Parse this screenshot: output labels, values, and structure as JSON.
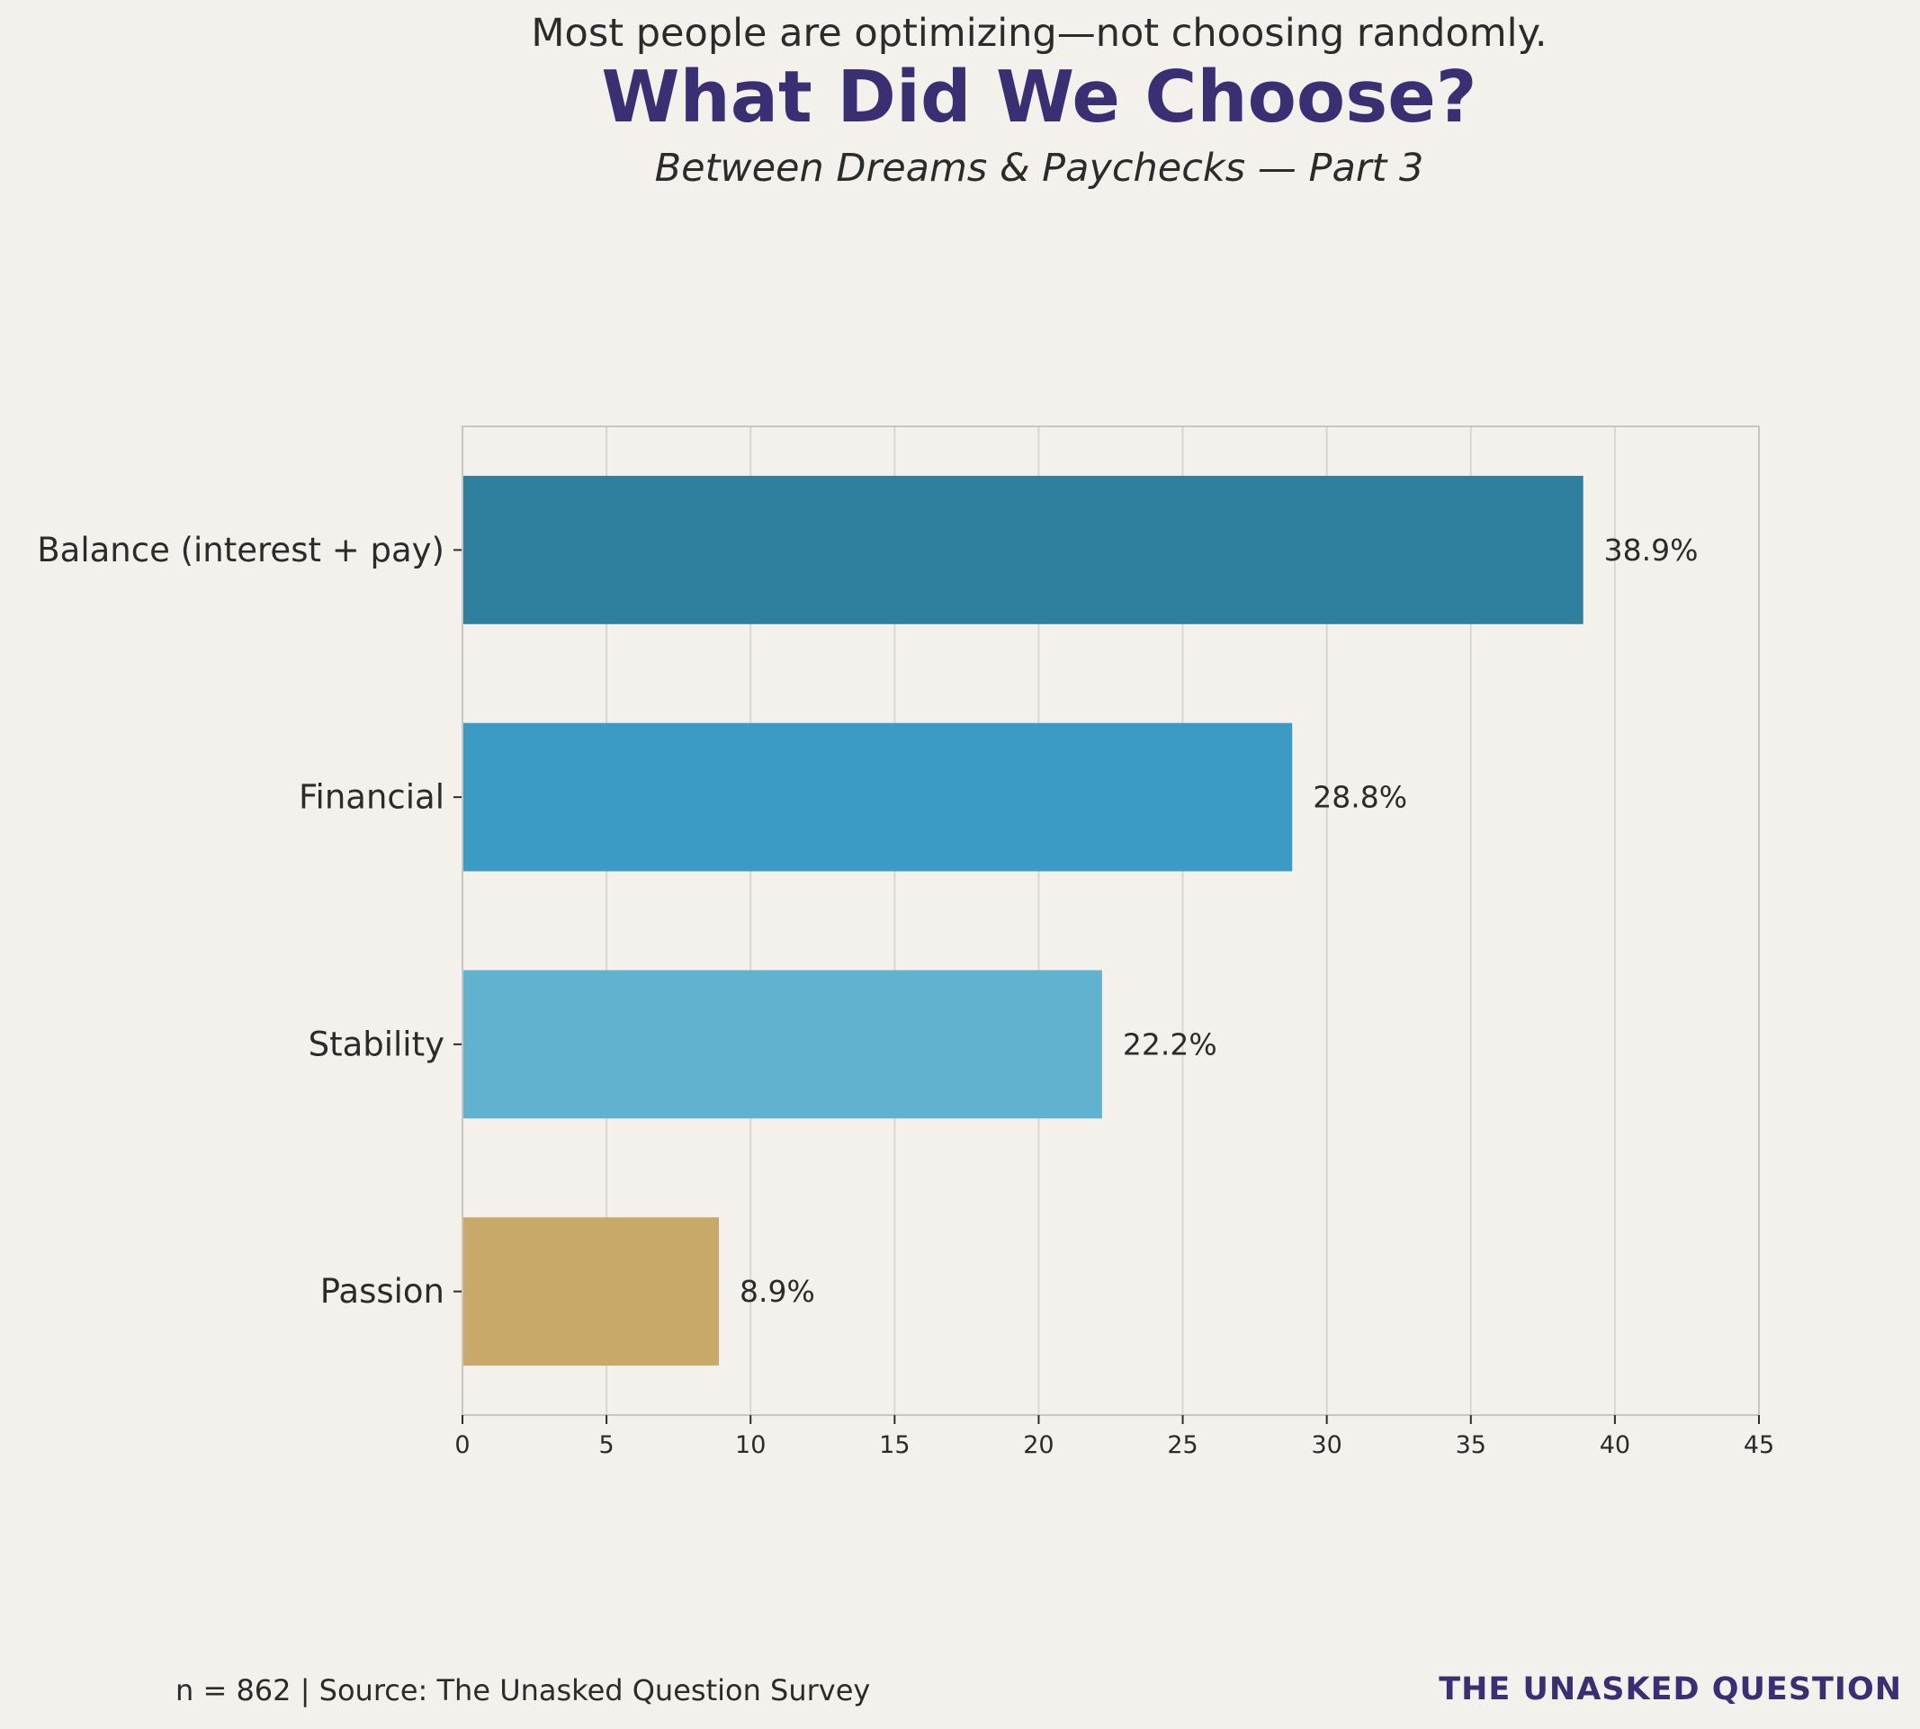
{
  "header": {
    "kicker": "Most people are optimizing—not choosing randomly.",
    "title": "What Did We Choose?",
    "subtitle": "Between Dreams & Paychecks — Part 3"
  },
  "footer": {
    "source": "n = 862 | Source: The Unasked Question Survey",
    "brand": "THE UNASKED QUESTION"
  },
  "chart_data": {
    "type": "bar",
    "orientation": "horizontal",
    "categories": [
      "Balance (interest + pay)",
      "Financial",
      "Stability",
      "Passion"
    ],
    "values": [
      38.9,
      28.8,
      22.2,
      8.9
    ],
    "data_labels": [
      "38.9%",
      "28.8%",
      "22.2%",
      "8.9%"
    ],
    "colors": [
      "#2f7f9e",
      "#3b9bc5",
      "#61b2cf",
      "#c8a96a"
    ],
    "xlim": [
      0,
      45
    ],
    "xticks": [
      0,
      5,
      10,
      15,
      20,
      25,
      30,
      35,
      40,
      45
    ],
    "grid": "vertical",
    "axis_color": "#c9c5bf",
    "grid_color": "#dad6d0",
    "text_color": "#2b2b2b"
  }
}
